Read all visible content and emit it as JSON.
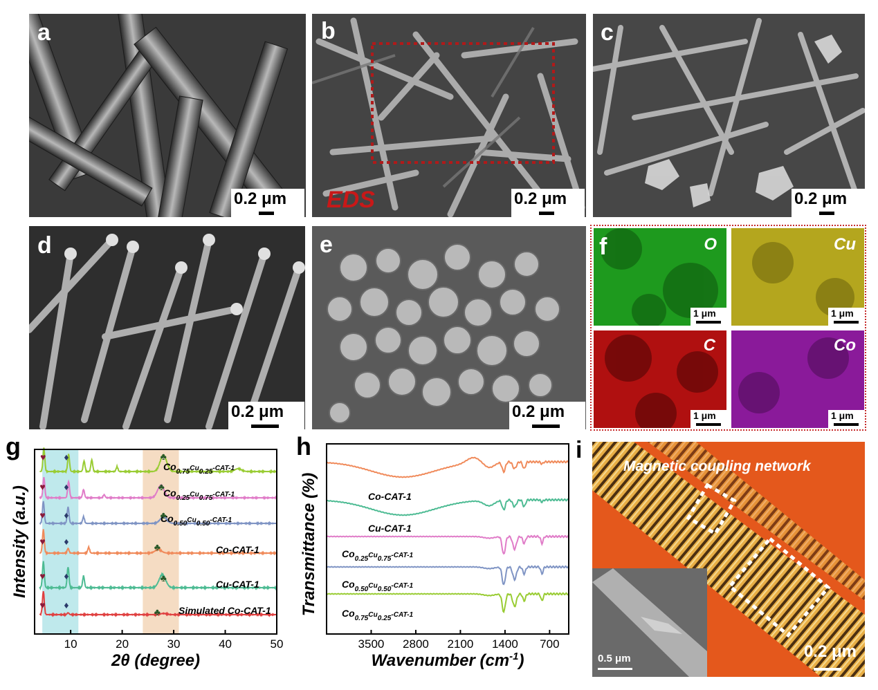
{
  "panels": {
    "a": {
      "letter": "a",
      "scale": "0.2 μm"
    },
    "b": {
      "letter": "b",
      "scale": "0.2 μm",
      "eds": "EDS"
    },
    "c": {
      "letter": "c",
      "scale": "0.2 μm"
    },
    "d": {
      "letter": "d",
      "scale": "0.2 μm"
    },
    "e": {
      "letter": "e",
      "scale": "0.2 μm"
    },
    "f": {
      "letter": "f",
      "maps": [
        {
          "element": "O",
          "color": "#1e9a1e",
          "scale": "1 μm"
        },
        {
          "element": "Cu",
          "color": "#b4a61e",
          "scale": "1 μm"
        },
        {
          "element": "C",
          "color": "#b01010",
          "scale": "1 μm"
        },
        {
          "element": "Co",
          "color": "#8a1a9a",
          "scale": "1 μm"
        }
      ]
    },
    "g": {
      "letter": "g"
    },
    "h": {
      "letter": "h"
    },
    "i": {
      "letter": "i",
      "title": "Magnetic coupling network",
      "scale": "0.2 μm",
      "inset_scale": "0.5 μm"
    }
  },
  "chart_data": [
    {
      "panel": "g",
      "type": "line",
      "xlabel_prefix": "2",
      "xlabel_symbol": "θ",
      "xlabel_suffix": " (degree)",
      "ylabel": "Intensity (a.u.)",
      "xlim": [
        3,
        50
      ],
      "xticks": [
        10,
        20,
        30,
        40,
        50
      ],
      "highlight_regions": [
        {
          "x": [
            4.5,
            11.5
          ],
          "color": "#bfe9ec"
        },
        {
          "x": [
            24,
            31
          ],
          "color": "#f5dcc3"
        }
      ],
      "series": [
        {
          "name": "Co0.75Cu0.25-CAT-1",
          "color": "#99cc33",
          "peaks": [
            [
              4.8,
              1.0
            ],
            [
              9.6,
              0.75
            ],
            [
              12.6,
              0.45
            ],
            [
              14.1,
              0.5
            ],
            [
              19.0,
              0.2
            ],
            [
              28.0,
              0.7
            ],
            [
              42.5,
              0.12
            ]
          ]
        },
        {
          "name": "Co0.25Cu0.75-CAT-1",
          "color": "#e07cc8",
          "peaks": [
            [
              4.8,
              1.0
            ],
            [
              9.6,
              0.8
            ],
            [
              12.5,
              0.4
            ],
            [
              16.5,
              0.15
            ],
            [
              27.5,
              0.6
            ]
          ]
        },
        {
          "name": "Co0.50Cu0.50-CAT-1",
          "color": "#7f94c4",
          "peaks": [
            [
              4.7,
              1.0
            ],
            [
              9.5,
              0.75
            ],
            [
              12.5,
              0.3
            ],
            [
              28.0,
              0.3
            ]
          ]
        },
        {
          "name": "Co-CAT-1",
          "color": "#f08a5a",
          "peaks": [
            [
              4.7,
              1.0
            ],
            [
              9.5,
              0.2
            ],
            [
              13.5,
              0.25
            ],
            [
              27.0,
              0.15
            ]
          ]
        },
        {
          "name": "Cu-CAT-1",
          "color": "#4dbb93",
          "peaks": [
            [
              4.7,
              1.0
            ],
            [
              9.5,
              0.8
            ],
            [
              12.5,
              0.45
            ],
            [
              27.8,
              0.5
            ]
          ]
        },
        {
          "name": "Simulated Co-CAT-1",
          "color": "#e04040",
          "peaks": [
            [
              4.7,
              1.0
            ],
            [
              9.5,
              0.08
            ],
            [
              28.0,
              0.05
            ]
          ]
        }
      ]
    },
    {
      "panel": "h",
      "type": "line",
      "xlabel": "Wavenumber",
      "xlabel_unit_base": "(cm",
      "xlabel_unit_exp": "-1",
      "xlabel_unit_close": ")",
      "ylabel": "Transmittance (%)",
      "xlim": [
        4200,
        400
      ],
      "xticks": [
        3500,
        2800,
        2100,
        1400,
        700
      ],
      "series": [
        {
          "name": "Co-CAT-1",
          "color": "#f08a5a"
        },
        {
          "name": "Cu-CAT-1",
          "color": "#4dbb93"
        },
        {
          "name": "Co0.25Cu0.75-CAT-1",
          "color": "#e07cc8"
        },
        {
          "name": "Co0.50Cu0.50-CAT-1",
          "color": "#7f94c4"
        },
        {
          "name": "Co0.75Cu0.25-CAT-1",
          "color": "#99cc33"
        }
      ]
    }
  ],
  "chart_labels": {
    "g": [
      {
        "base": "Co",
        "sub1": "0.75",
        "mid": "Cu",
        "sub2": "0.25",
        "tail": "-CAT-1"
      },
      {
        "base": "Co",
        "sub1": "0.25",
        "mid": "Cu",
        "sub2": "0.75",
        "tail": "-CAT-1"
      },
      {
        "base": "Co",
        "sub1": "0.50",
        "mid": "Cu",
        "sub2": "0.50",
        "tail": "-CAT-1"
      },
      {
        "plain": "Co-CAT-1"
      },
      {
        "plain": "Cu-CAT-1"
      },
      {
        "plain": "Simulated Co-CAT-1"
      }
    ],
    "h": [
      {
        "plain": "Co-CAT-1"
      },
      {
        "plain": "Cu-CAT-1"
      },
      {
        "base": "Co",
        "sub1": "0.25",
        "mid": "Cu",
        "sub2": "0.75",
        "tail": "-CAT-1"
      },
      {
        "base": "Co",
        "sub1": "0.50",
        "mid": "Cu",
        "sub2": "0.50",
        "tail": "-CAT-1"
      },
      {
        "base": "Co",
        "sub1": "0.75",
        "mid": "Cu",
        "sub2": "0.25",
        "tail": "-CAT-1"
      }
    ]
  },
  "markers": {
    "heart": "♥",
    "diamond": "♦",
    "club": "♣"
  }
}
